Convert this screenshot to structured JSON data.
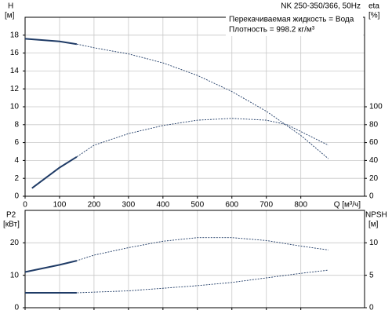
{
  "chart_data": [
    {
      "type": "line",
      "title": "NK 250-350/366, 50Hz",
      "annotations": [
        "Перекачиваемая жидкость = Вода",
        "Плотность = 998.2 кг/м³"
      ],
      "y_label": "H",
      "y_unit": "[м]",
      "y2_label": "eta",
      "y2_unit": "[%]",
      "x_label": "Q [м³/ч]",
      "xlim": [
        0,
        985
      ],
      "xticks": [
        0,
        100,
        200,
        300,
        400,
        500,
        600,
        700,
        800
      ],
      "ylim": [
        0,
        20
      ],
      "yticks": [
        0,
        2,
        4,
        6,
        8,
        10,
        12,
        14,
        16,
        18
      ],
      "y2lim": [
        0,
        200
      ],
      "y2ticks": [
        0,
        20,
        40,
        60,
        80,
        100
      ],
      "grid": true,
      "solid_range": [
        0,
        150
      ],
      "series": [
        {
          "name": "H",
          "color": "#1f3b66",
          "x": [
            0,
            100,
            150,
            200,
            300,
            400,
            500,
            600,
            700,
            800,
            880
          ],
          "values": [
            17.6,
            17.3,
            17.0,
            16.6,
            15.9,
            14.9,
            13.5,
            11.7,
            9.5,
            6.8,
            4.2
          ]
        },
        {
          "name": "eta",
          "color": "#1f3b66",
          "axis": "y2",
          "x": [
            20,
            100,
            150,
            200,
            300,
            400,
            500,
            600,
            700,
            760,
            880
          ],
          "values": [
            9,
            32,
            44,
            57,
            70,
            79,
            85,
            87,
            85,
            80,
            57
          ]
        }
      ]
    },
    {
      "type": "line",
      "y_label": "P2",
      "y_unit": "[кВт]",
      "y2_label": "NPSH",
      "y2_unit": "[м]",
      "xlim": [
        0,
        985
      ],
      "xticks": [
        0,
        100,
        200,
        300,
        400,
        500,
        600,
        700,
        800
      ],
      "ylim": [
        0,
        30
      ],
      "yticks": [
        0,
        10,
        20
      ],
      "y2lim": [
        0,
        15
      ],
      "y2ticks": [
        0,
        5,
        10
      ],
      "grid": true,
      "solid_range": [
        0,
        150
      ],
      "series": [
        {
          "name": "P2",
          "color": "#1f3b66",
          "x": [
            0,
            100,
            150,
            200,
            300,
            400,
            500,
            600,
            700,
            800,
            880
          ],
          "values": [
            11,
            13.2,
            14.5,
            16.2,
            18.5,
            20.5,
            21.6,
            21.6,
            20.7,
            19,
            17.8
          ]
        },
        {
          "name": "NPSH",
          "color": "#1f3b66",
          "axis": "y2",
          "x": [
            0,
            150,
            300,
            500,
            600,
            700,
            800,
            880
          ],
          "values": [
            2.3,
            2.3,
            2.6,
            3.4,
            3.9,
            4.6,
            5.3,
            5.8
          ]
        }
      ]
    }
  ]
}
